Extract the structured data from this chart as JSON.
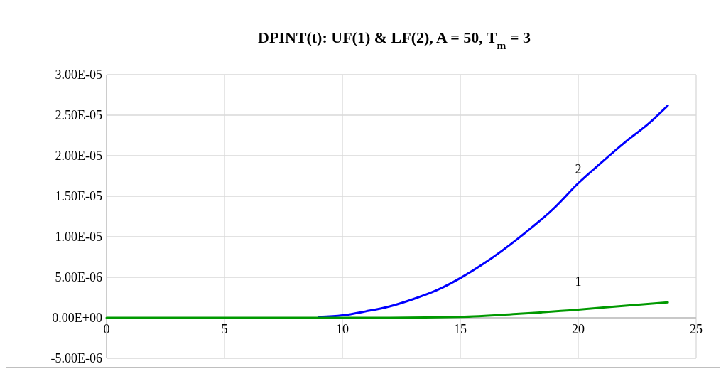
{
  "chart_data": {
    "type": "line",
    "title": "DPINT(t): UF(1) & LF(2), A = 50, T$_{m}$ = 3",
    "xlim": [
      0,
      25
    ],
    "xticks": [
      0,
      5,
      10,
      15,
      20,
      25
    ],
    "ylim": [
      -5e-06,
      3e-05
    ],
    "yticks": [
      {
        "value": -5e-06,
        "label": "-5.00E-06"
      },
      {
        "value": 0,
        "label": "0.00E+00"
      },
      {
        "value": 5e-06,
        "label": "5.00E-06"
      },
      {
        "value": 1e-05,
        "label": "1.00E-05"
      },
      {
        "value": 1.5e-05,
        "label": "1.50E-05"
      },
      {
        "value": 2e-05,
        "label": "2.00E-05"
      },
      {
        "value": 2.5e-05,
        "label": "2.50E-05"
      },
      {
        "value": 3e-05,
        "label": "3.00E-05"
      }
    ],
    "grid": true,
    "marker": "none",
    "line_style": "solid",
    "series": [
      {
        "name": "2",
        "color": "#0000ff",
        "x": [
          9,
          10,
          11,
          12,
          13,
          14,
          15,
          16,
          17.5,
          19,
          20,
          21,
          22,
          23,
          23.8
        ],
        "values": [
          1e-07,
          3e-07,
          8e-07,
          1.4e-06,
          2.3e-06,
          3.4e-06,
          4.9e-06,
          6.7e-06,
          9.9e-06,
          1.36e-05,
          1.66e-05,
          1.92e-05,
          2.17e-05,
          2.4e-05,
          2.62e-05
        ]
      },
      {
        "name": "1",
        "color": "#009900",
        "x": [
          0,
          12,
          15,
          17.5,
          20,
          22,
          23.8
        ],
        "values": [
          0,
          0,
          1e-07,
          5e-07,
          1e-06,
          1.5e-06,
          1.9e-06
        ]
      }
    ]
  }
}
